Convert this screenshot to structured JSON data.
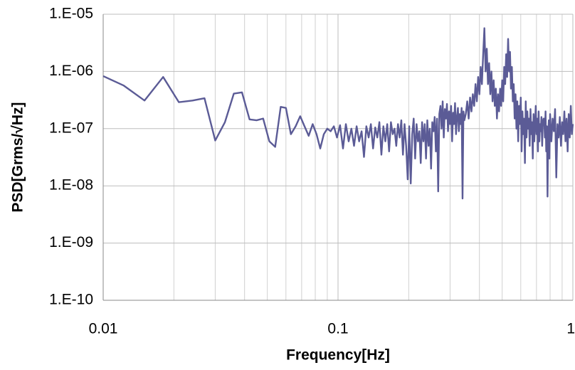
{
  "chart_data": {
    "type": "line",
    "xlabel": "Frequency[Hz]",
    "ylabel": "PSD[Grms/√Hz]",
    "xscale": "log",
    "yscale": "log",
    "grid": true,
    "color": "#5b5b96",
    "xlim": [
      0.01,
      1
    ],
    "ylim": [
      1e-10,
      1e-05
    ],
    "xticks": [
      0.01,
      0.1,
      1
    ],
    "xminorticks": [
      0.02,
      0.03,
      0.04,
      0.05,
      0.06,
      0.07,
      0.08,
      0.09,
      0.2,
      0.3,
      0.4,
      0.5,
      0.6,
      0.7,
      0.8,
      0.9
    ],
    "yticks": [
      {
        "value": 1e-10,
        "label": "1.E-10"
      },
      {
        "value": 1e-09,
        "label": "1.E-09"
      },
      {
        "value": 1e-08,
        "label": "1.E-08"
      },
      {
        "value": 1e-07,
        "label": "1.E-07"
      },
      {
        "value": 1e-06,
        "label": "1.E-06"
      },
      {
        "value": 1e-05,
        "label": "1.E-05"
      }
    ],
    "x": [
      0.01,
      0.0122,
      0.015,
      0.018,
      0.021,
      0.024,
      0.027,
      0.03,
      0.033,
      0.036,
      0.039,
      0.042,
      0.045,
      0.048,
      0.051,
      0.054,
      0.057,
      0.06,
      0.063,
      0.066,
      0.069,
      0.072,
      0.075,
      0.078,
      0.081,
      0.084,
      0.087,
      0.09,
      0.093,
      0.096,
      0.099,
      0.102,
      0.105,
      0.108,
      0.111,
      0.114,
      0.117,
      0.12,
      0.123,
      0.126,
      0.129,
      0.132,
      0.135,
      0.138,
      0.141,
      0.144,
      0.147,
      0.15,
      0.153,
      0.156,
      0.159,
      0.162,
      0.165,
      0.168,
      0.171,
      0.174,
      0.177,
      0.18,
      0.183,
      0.186,
      0.189,
      0.192,
      0.195,
      0.198,
      0.201,
      0.204,
      0.207,
      0.21,
      0.213,
      0.216,
      0.219,
      0.222,
      0.225,
      0.228,
      0.231,
      0.234,
      0.237,
      0.24,
      0.243,
      0.246,
      0.249,
      0.252,
      0.255,
      0.258,
      0.261,
      0.264,
      0.267,
      0.27,
      0.273,
      0.276,
      0.279,
      0.282,
      0.285,
      0.288,
      0.291,
      0.294,
      0.297,
      0.3,
      0.303,
      0.306,
      0.309,
      0.312,
      0.315,
      0.318,
      0.321,
      0.324,
      0.327,
      0.33,
      0.333,
      0.336,
      0.339,
      0.342,
      0.345,
      0.35,
      0.355,
      0.36,
      0.365,
      0.37,
      0.375,
      0.38,
      0.385,
      0.39,
      0.395,
      0.4,
      0.405,
      0.41,
      0.415,
      0.42,
      0.425,
      0.43,
      0.435,
      0.44,
      0.445,
      0.45,
      0.455,
      0.46,
      0.465,
      0.47,
      0.475,
      0.48,
      0.485,
      0.49,
      0.495,
      0.5,
      0.505,
      0.51,
      0.515,
      0.52,
      0.525,
      0.53,
      0.535,
      0.54,
      0.545,
      0.55,
      0.555,
      0.56,
      0.565,
      0.57,
      0.575,
      0.58,
      0.585,
      0.59,
      0.595,
      0.6,
      0.605,
      0.61,
      0.615,
      0.62,
      0.625,
      0.63,
      0.635,
      0.64,
      0.645,
      0.65,
      0.655,
      0.66,
      0.665,
      0.67,
      0.675,
      0.68,
      0.685,
      0.69,
      0.695,
      0.7,
      0.705,
      0.71,
      0.715,
      0.72,
      0.725,
      0.73,
      0.735,
      0.74,
      0.745,
      0.75,
      0.755,
      0.76,
      0.765,
      0.77,
      0.775,
      0.78,
      0.785,
      0.79,
      0.795,
      0.8,
      0.81,
      0.82,
      0.83,
      0.84,
      0.85,
      0.86,
      0.87,
      0.88,
      0.89,
      0.9,
      0.91,
      0.92,
      0.93,
      0.94,
      0.95,
      0.96,
      0.97,
      0.98,
      0.99,
      1
    ],
    "values": [
      8.3e-07,
      5.7e-07,
      3.1e-07,
      8e-07,
      2.9e-07,
      3.1e-07,
      3.4e-07,
      6.2e-08,
      1.3e-07,
      4.1e-07,
      4.3e-07,
      1.45e-07,
      1.4e-07,
      1.5e-07,
      6e-08,
      4.8e-08,
      2.4e-07,
      2.3e-07,
      8e-08,
      1.1e-07,
      1.65e-07,
      1.1e-07,
      7.5e-08,
      1.2e-07,
      8e-08,
      4.5e-08,
      8e-08,
      1e-07,
      9e-08,
      1.1e-07,
      7e-08,
      1.15e-07,
      4.5e-08,
      1.2e-07,
      6e-08,
      1e-07,
      5e-08,
      1.1e-07,
      6e-08,
      9e-08,
      3.2e-08,
      1.1e-07,
      7e-08,
      1.2e-07,
      4.5e-08,
      1.05e-07,
      7e-08,
      1.3e-07,
      3.5e-08,
      1.1e-07,
      6e-08,
      1.2e-07,
      4e-08,
      1.3e-07,
      8e-08,
      1e-07,
      5e-08,
      1.2e-07,
      7e-08,
      1.4e-07,
      3.5e-08,
      1.2e-07,
      5e-08,
      1.3e-08,
      1.1e-07,
      1.1e-08,
      8e-08,
      1.5e-07,
      3e-08,
      1.2e-07,
      6e-08,
      9e-08,
      2.5e-08,
      1.3e-07,
      6e-08,
      1.2e-07,
      3e-08,
      1.4e-07,
      5e-08,
      1e-07,
      2e-08,
      1.3e-07,
      9e-08,
      1.6e-07,
      4e-08,
      1.5e-07,
      8e-09,
      1.8e-07,
      2.5e-07,
      1e-07,
      3e-07,
      7e-08,
      2.2e-07,
      1.5e-07,
      2.7e-07,
      9e-08,
      2e-07,
      1.2e-07,
      2.5e-07,
      6e-08,
      1.9e-07,
      1.2e-07,
      2.8e-07,
      8e-08,
      1.6e-07,
      2.3e-07,
      9e-08,
      1.8e-07,
      1.2e-07,
      2.3e-07,
      6e-09,
      2e-07,
      1.4e-07,
      1.8e-07,
      3e-07,
      1.5e-07,
      3.5e-07,
      2e-07,
      4e-07,
      2.5e-07,
      6e-07,
      3e-07,
      8e-07,
      4e-07,
      1.2e-06,
      6e-07,
      2e-06,
      5.7e-06,
      1e-06,
      2.5e-06,
      6e-07,
      1.4e-06,
      4e-07,
      1e-06,
      3e-07,
      7e-07,
      2.5e-07,
      5e-07,
      1.5e-07,
      4e-07,
      2e-07,
      5e-07,
      2.5e-07,
      7e-07,
      3e-07,
      1.2e-06,
      6e-07,
      2e-06,
      8e-07,
      3.7e-06,
      1e-06,
      2.2e-06,
      5e-07,
      1.2e-06,
      3e-07,
      6e-07,
      1.5e-07,
      4e-07,
      1e-07,
      3e-07,
      6e-08,
      2.5e-07,
      1.2e-07,
      3.5e-07,
      4e-08,
      2e-07,
      8e-08,
      1.5e-07,
      2.5e-08,
      3e-07,
      7e-08,
      2e-07,
      1e-07,
      1.5e-07,
      5e-08,
      2.2e-07,
      8e-08,
      1.3e-07,
      3e-08,
      1.8e-07,
      6e-08,
      1.2e-07,
      2.5e-07,
      8e-08,
      1.5e-07,
      4e-08,
      2e-07,
      6e-08,
      1.2e-07,
      9e-08,
      1.6e-07,
      5e-08,
      1.3e-07,
      1.5e-07,
      1.5e-07,
      7e-08,
      2e-07,
      4e-08,
      1.1e-07,
      6.5e-09,
      8e-08,
      1.4e-07,
      3e-08,
      1.8e-07,
      6e-08,
      1.5e-07,
      9e-08,
      2.2e-07,
      1.4e-08,
      1.2e-07,
      7e-08,
      1.6e-07,
      5e-08,
      1.3e-07,
      8e-08,
      2e-07,
      6e-08,
      1.5e-07,
      4e-08,
      1.8e-07,
      7e-08,
      2.5e-07,
      8e-08,
      1.2e-07
    ]
  }
}
